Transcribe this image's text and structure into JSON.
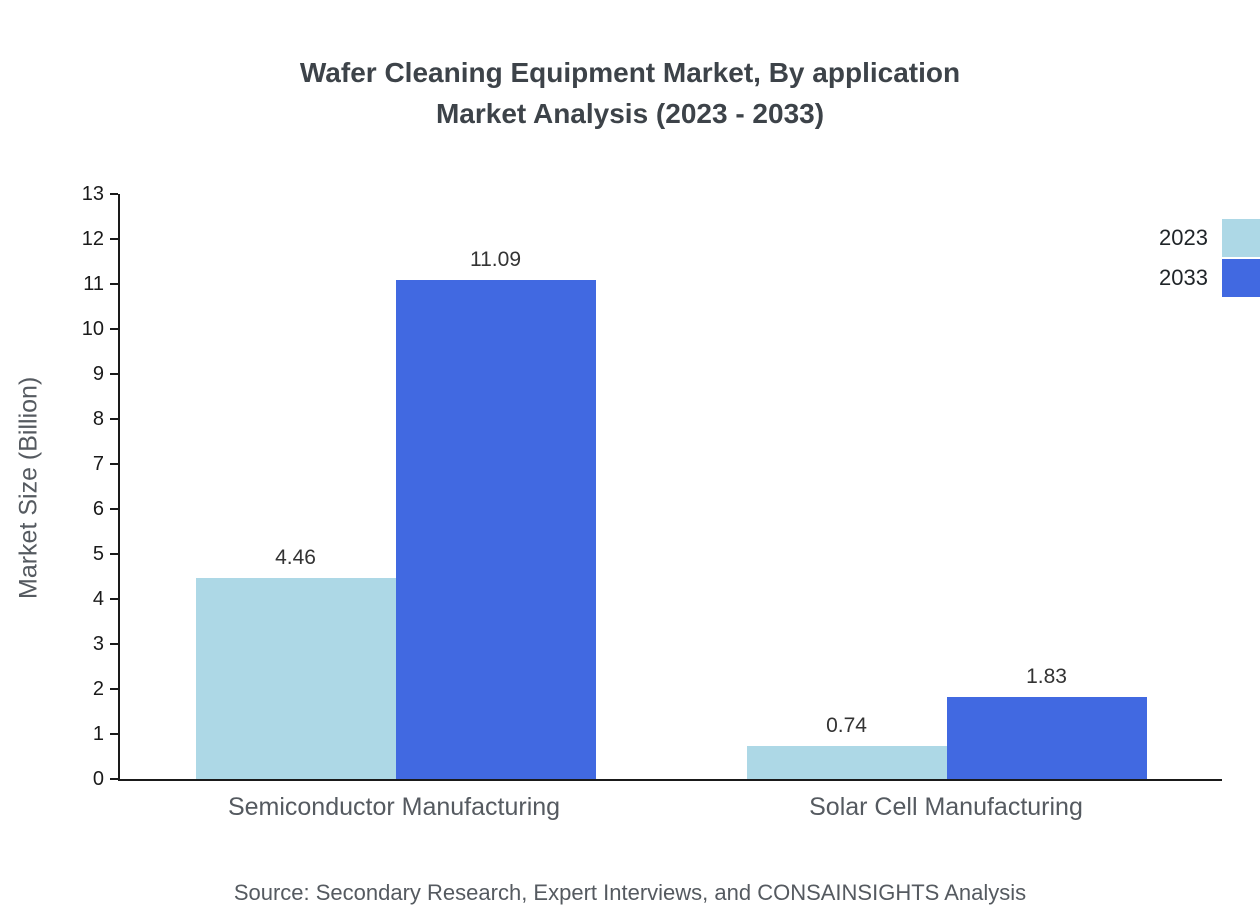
{
  "title": {
    "line1": "Wafer Cleaning Equipment Market, By application",
    "line2": "Market Analysis (2023 - 2033)"
  },
  "source": "Source: Secondary Research, Expert Interviews, and CONSAINSIGHTS Analysis",
  "chart_data": {
    "type": "bar",
    "categories": [
      "Semiconductor Manufacturing",
      "Solar Cell Manufacturing"
    ],
    "series": [
      {
        "name": "2023",
        "color": "#add8e6",
        "values": [
          4.46,
          0.74
        ]
      },
      {
        "name": "2033",
        "color": "#4169e1",
        "values": [
          11.09,
          1.83
        ]
      }
    ],
    "value_labels": [
      [
        "4.46",
        "0.74"
      ],
      [
        "11.09",
        "1.83"
      ]
    ],
    "ylabel": "Market Size (Billion)",
    "ylim": [
      0,
      13
    ],
    "ytick_step": 1,
    "grid": false,
    "legend_position": "top-right"
  }
}
